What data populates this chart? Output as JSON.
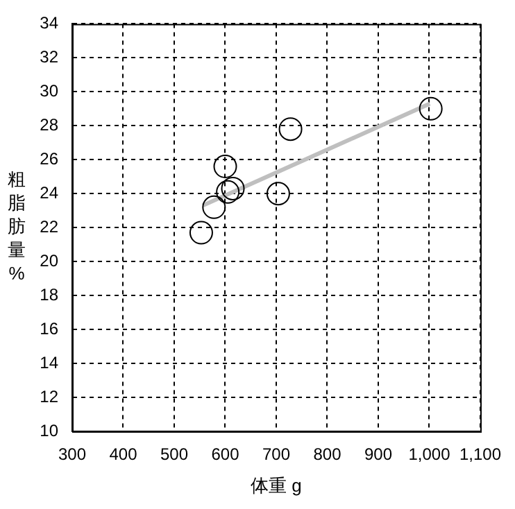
{
  "chart_data": {
    "type": "scatter",
    "xlabel": "体重 g",
    "ylabel": "粗脂肪量%",
    "xlim": [
      300,
      1100
    ],
    "ylim": [
      10,
      34
    ],
    "xticks": [
      300,
      400,
      500,
      600,
      700,
      800,
      900,
      {
        "value": 1000,
        "label": "1,000"
      },
      {
        "value": 1100,
        "label": "1,100"
      }
    ],
    "yticks": [
      10,
      12,
      14,
      16,
      18,
      20,
      22,
      24,
      26,
      28,
      30,
      32,
      34
    ],
    "grid": true,
    "marker": "circle",
    "series": [
      {
        "color": "#000000",
        "x": [
          1003,
          728,
          600,
          605,
          615,
          704,
          578,
          553
        ],
        "values": [
          29.0,
          27.8,
          25.6,
          24.1,
          24.3,
          24.0,
          23.2,
          21.7
        ]
      },
      {
        "type": "line",
        "marker": "none",
        "color": "#bfbfbf",
        "x": [
          556,
          1001
        ],
        "values": [
          23.3,
          29.3
        ]
      }
    ]
  }
}
